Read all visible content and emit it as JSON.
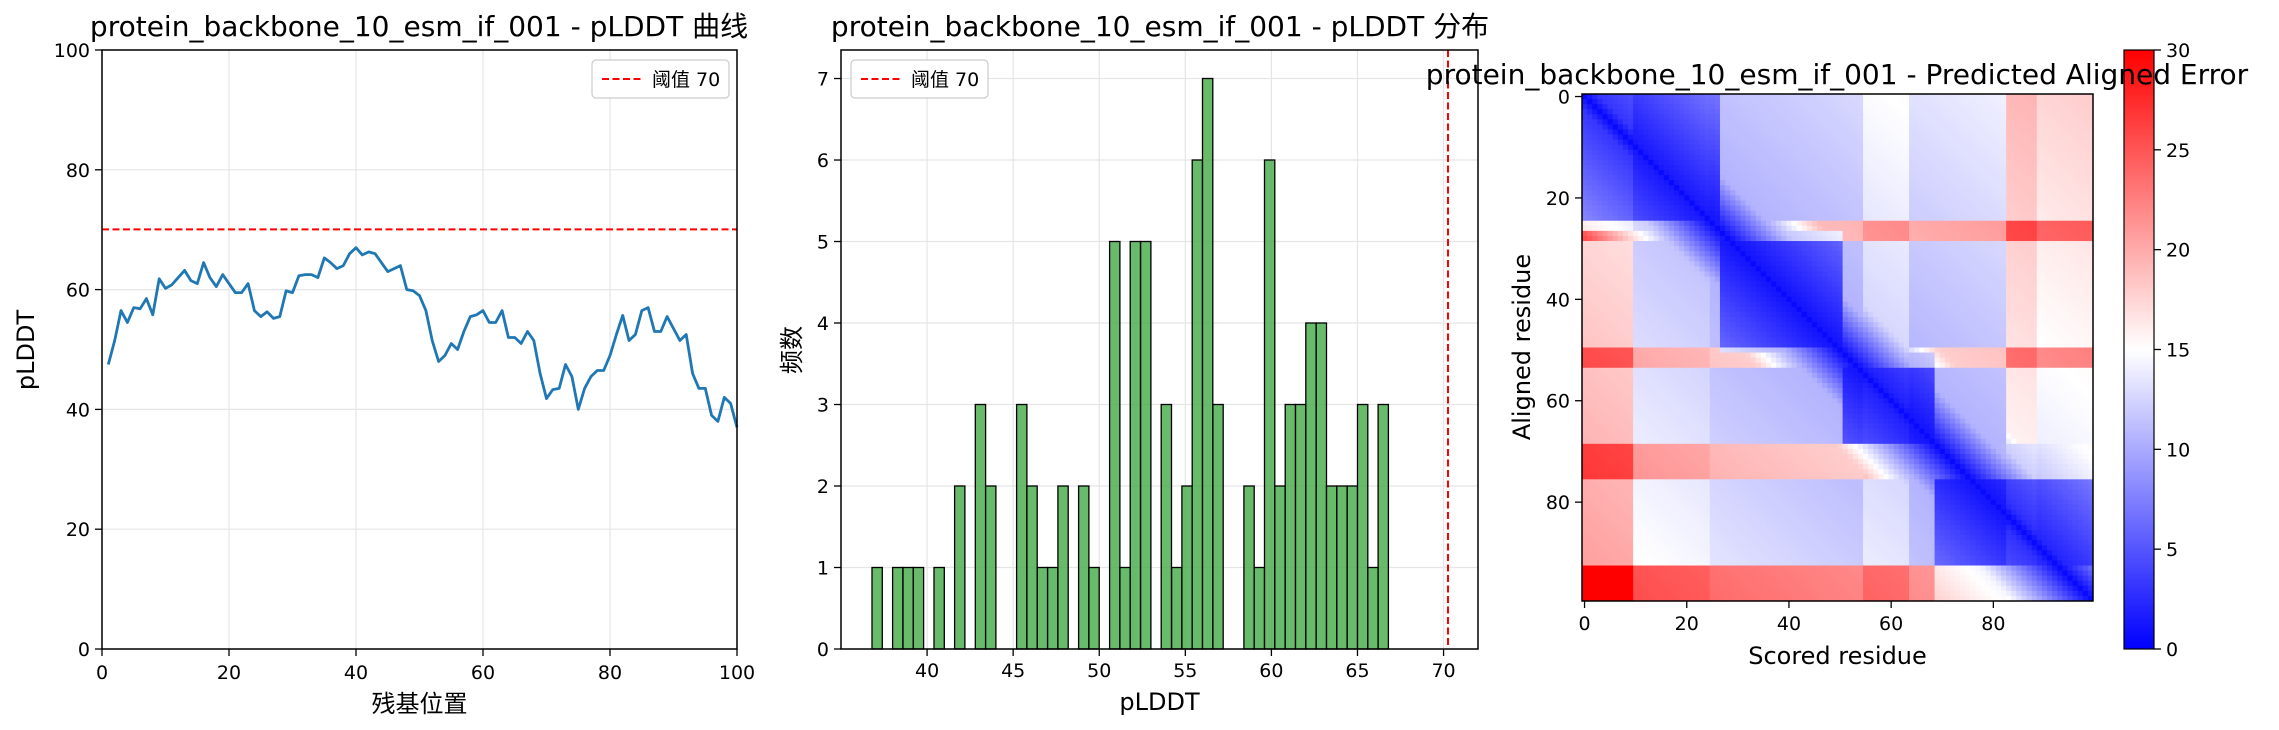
{
  "chart_data": [
    {
      "type": "line",
      "title": "protein_backbone_10_esm_if_001 - pLDDT 曲线",
      "xlabel": "残基位置",
      "ylabel": "pLDDT",
      "xlim": [
        0,
        100
      ],
      "ylim": [
        0,
        100
      ],
      "xticks": [
        0,
        20,
        40,
        60,
        80,
        100
      ],
      "yticks": [
        0,
        20,
        40,
        60,
        80,
        100
      ],
      "grid": true,
      "series": [
        {
          "name": "pLDDT",
          "color": "#1f77b4",
          "x": [
            1,
            2,
            3,
            4,
            5,
            6,
            7,
            8,
            9,
            10,
            11,
            12,
            13,
            14,
            15,
            16,
            17,
            18,
            19,
            20,
            21,
            22,
            23,
            24,
            25,
            26,
            27,
            28,
            29,
            30,
            31,
            32,
            33,
            34,
            35,
            36,
            37,
            38,
            39,
            40,
            41,
            42,
            43,
            44,
            45,
            46,
            47,
            48,
            49,
            50,
            51,
            52,
            53,
            54,
            55,
            56,
            57,
            58,
            59,
            60,
            61,
            62,
            63,
            64,
            65,
            66,
            67,
            68,
            69,
            70,
            71,
            72,
            73,
            74,
            75,
            76,
            77,
            78,
            79,
            80,
            81,
            82,
            83,
            84,
            85,
            86,
            87,
            88,
            89,
            90,
            91,
            92,
            93,
            94,
            95,
            96,
            97,
            98,
            99,
            100
          ],
          "values": [
            47.5,
            51.5,
            56.5,
            54.5,
            57,
            56.8,
            58.5,
            55.8,
            61.8,
            60.2,
            60.8,
            62,
            63.2,
            61.5,
            61,
            64.5,
            62,
            60.5,
            62.5,
            61,
            59.5,
            59.5,
            61,
            56.5,
            55.5,
            56.3,
            55.2,
            55.5,
            59.8,
            59.5,
            62.3,
            62.5,
            62.5,
            62,
            65.3,
            64.5,
            63.5,
            64,
            66,
            67,
            65.8,
            66.3,
            66,
            64.5,
            63,
            63.5,
            64,
            60,
            59.8,
            59,
            56.5,
            51.5,
            48,
            49,
            51,
            50,
            53,
            55.5,
            55.8,
            56.5,
            54.5,
            54.5,
            56.5,
            52,
            52,
            51,
            53,
            51.5,
            46,
            41.8,
            43.3,
            43.5,
            47.5,
            45.5,
            40,
            43.5,
            45.5,
            46.5,
            46.5,
            49,
            52.5,
            55.7,
            51.5,
            52.5,
            56.5,
            57,
            53,
            53,
            55.5,
            53.5,
            51.5,
            52.5,
            46,
            43.5,
            43.5,
            39,
            38,
            42,
            41,
            37
          ]
        }
      ],
      "reference_line": {
        "y": 70,
        "label": "阈值 70",
        "color": "#ff0000",
        "style": "dashed"
      },
      "legend": "top-right"
    },
    {
      "type": "bar",
      "subtype": "histogram",
      "title": "protein_backbone_10_esm_if_001 - pLDDT 分布",
      "xlabel": "pLDDT",
      "ylabel": "频数",
      "xlim": [
        35,
        72
      ],
      "ylim": [
        0,
        7.35
      ],
      "xticks": [
        40,
        45,
        50,
        55,
        60,
        65,
        70
      ],
      "yticks": [
        0,
        1,
        2,
        3,
        4,
        5,
        6,
        7
      ],
      "grid": true,
      "bar_color": "#4caf50",
      "edge_color": "#000000",
      "bin_width": 0.6,
      "bin_starts": [
        36.8,
        37.4,
        38,
        38.6,
        39.2,
        39.8,
        40.4,
        41,
        41.6,
        42.2,
        42.8,
        43.4,
        44,
        44.6,
        45.2,
        45.8,
        46.4,
        47,
        47.6,
        48.2,
        48.8,
        49.4,
        50,
        50.6,
        51.2,
        51.8,
        52.4,
        53,
        53.6,
        54.2,
        54.8,
        55.4,
        56,
        56.6,
        57.2,
        57.8,
        58.4,
        59,
        59.6,
        60.2,
        60.8,
        61.4,
        62,
        62.6,
        63.2,
        63.8,
        64.4,
        65,
        65.6,
        66.2
      ],
      "values": [
        1,
        0,
        1,
        1,
        1,
        0,
        1,
        0,
        2,
        0,
        3,
        2,
        0,
        0,
        3,
        2,
        1,
        1,
        2,
        0,
        2,
        1,
        0,
        5,
        1,
        5,
        5,
        0,
        3,
        1,
        2,
        6,
        7,
        3,
        0,
        0,
        2,
        1,
        6,
        2,
        3,
        3,
        4,
        4,
        2,
        2,
        2,
        3,
        1,
        3
      ],
      "reference_line": {
        "x": 70,
        "label": "阈值 70",
        "color": "#ff0000",
        "style": "dashed"
      },
      "legend": "top-left"
    },
    {
      "type": "heatmap",
      "title": "protein_backbone_10_esm_if_001 - Predicted Aligned Error",
      "xlabel": "Scored residue",
      "ylabel": "Aligned residue",
      "size": 100,
      "xticks": [
        0,
        20,
        40,
        60,
        80
      ],
      "yticks": [
        0,
        20,
        40,
        60,
        80
      ],
      "colormap": "bwr",
      "colormap_stops": [
        "#0000ff",
        "#ffffff",
        "#ff0000"
      ],
      "vmin": 0,
      "vmax": 30,
      "colorbar_ticks": [
        0,
        5,
        10,
        15,
        20,
        25,
        30
      ]
    }
  ]
}
